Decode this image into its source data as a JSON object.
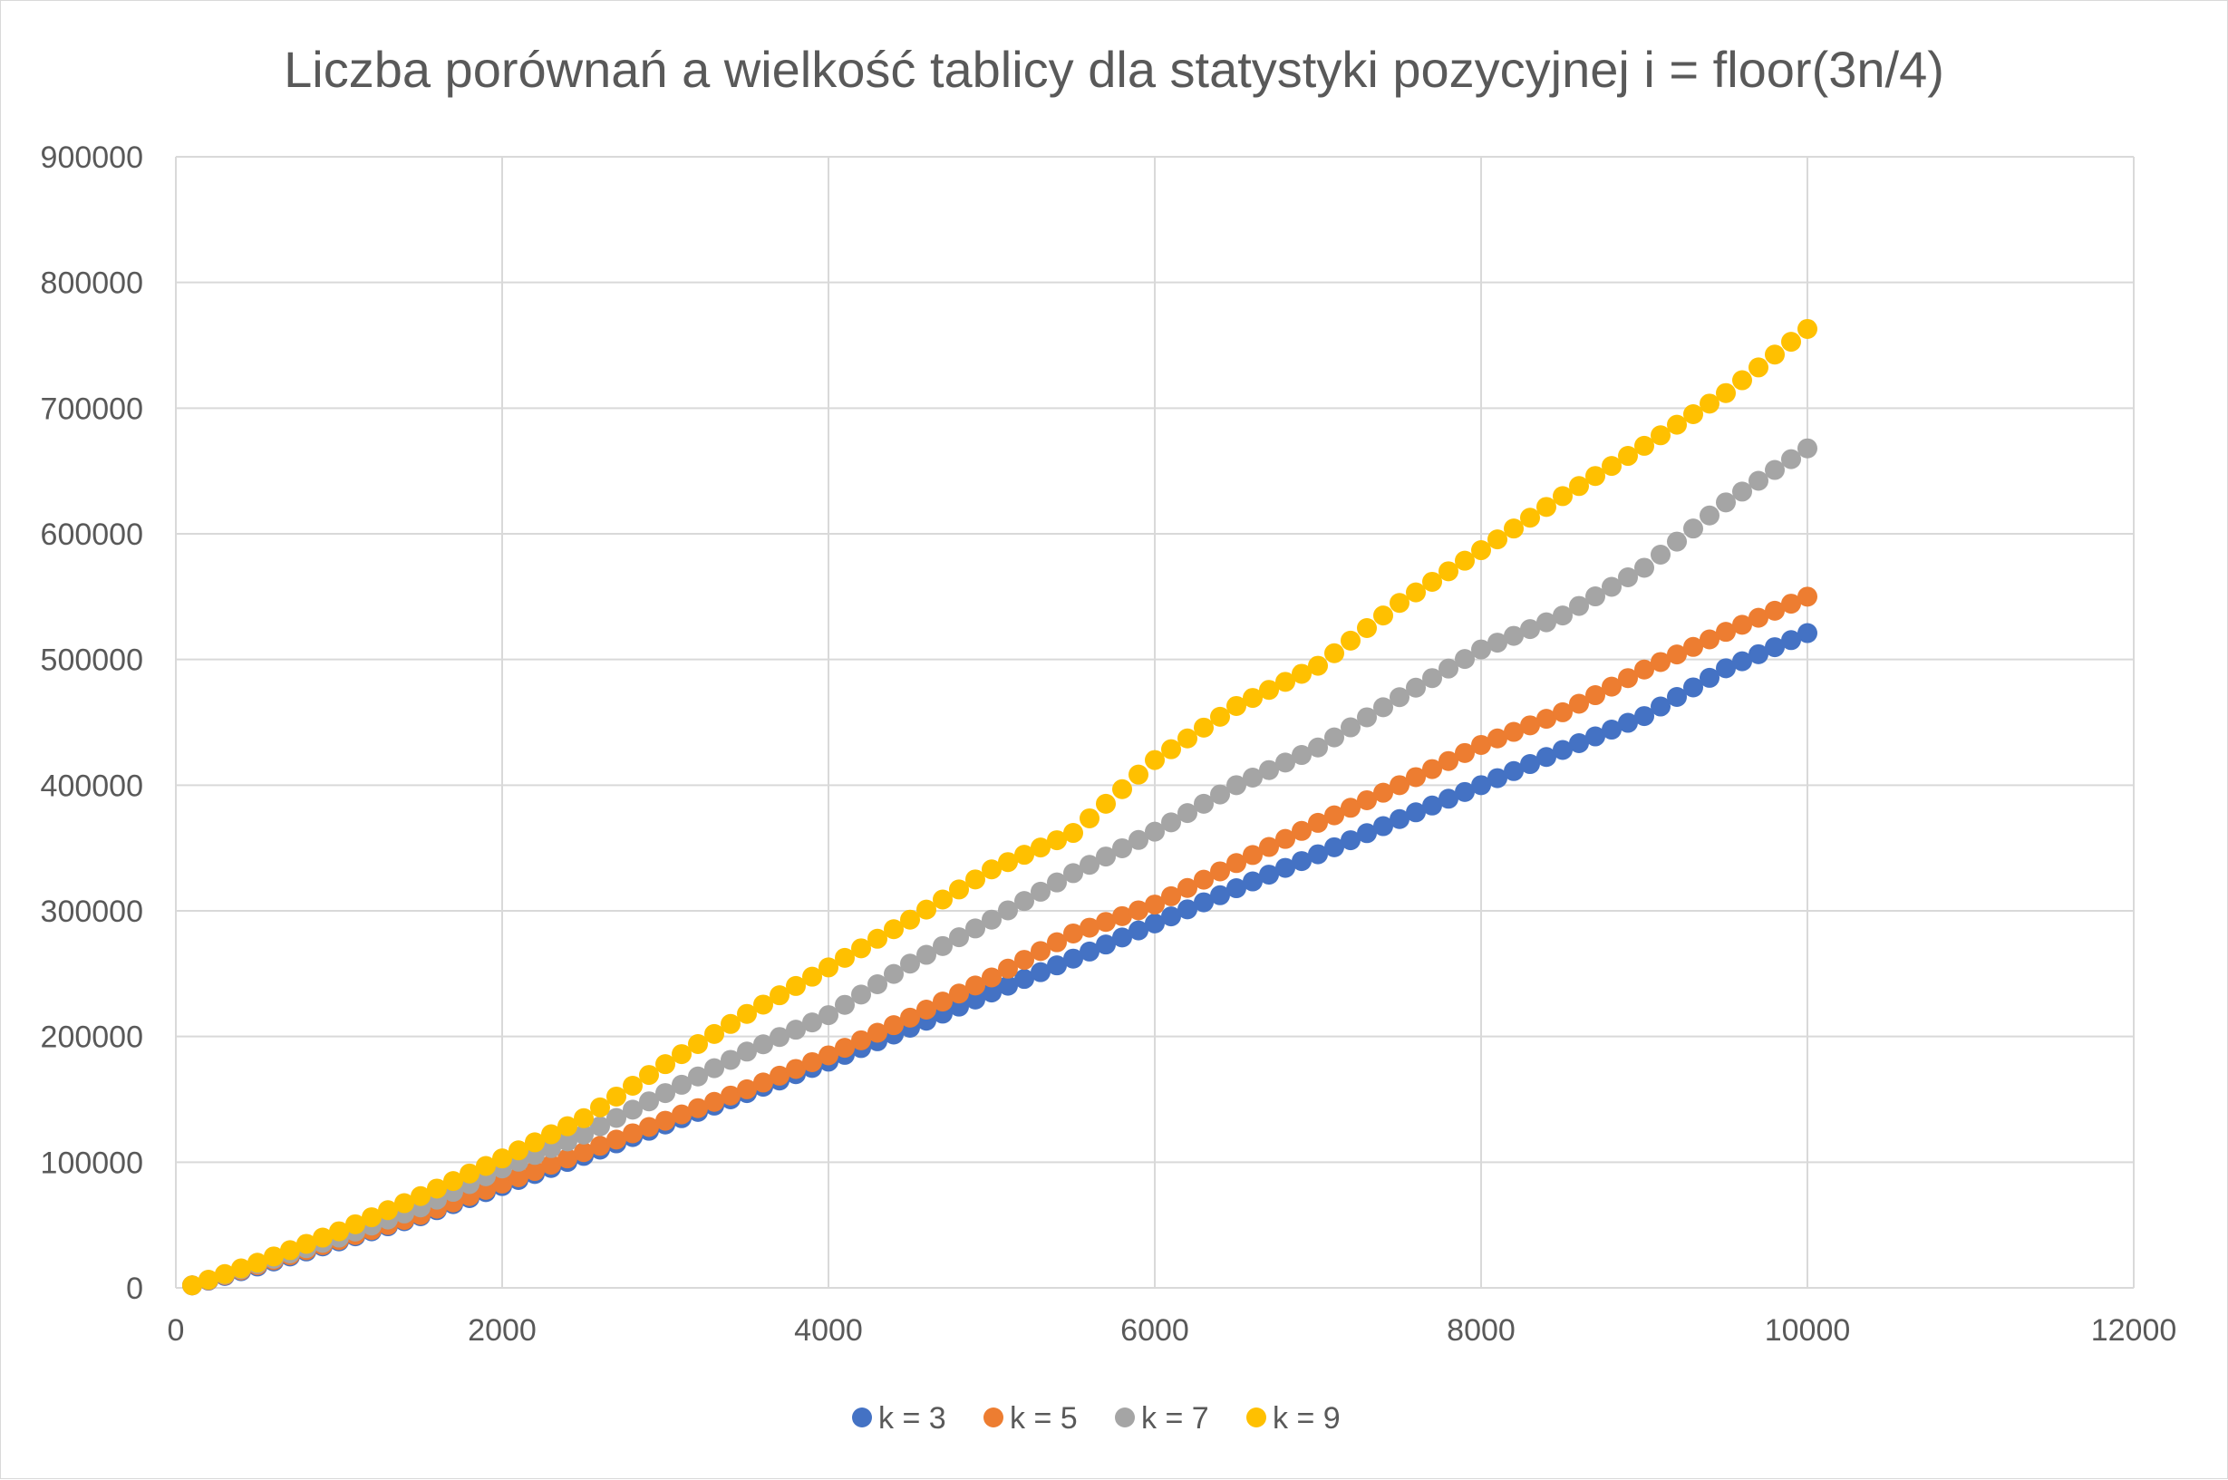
{
  "chart_data": {
    "type": "scatter",
    "title": "Liczba porównań a wielkość tablicy dla statystyki pozycyjnej i = floor(3n/4)",
    "xlabel": "",
    "ylabel": "",
    "xlim": [
      0,
      12000
    ],
    "ylim": [
      0,
      900000
    ],
    "x_ticks": [
      0,
      2000,
      4000,
      6000,
      8000,
      10000,
      12000
    ],
    "y_ticks": [
      0,
      100000,
      200000,
      300000,
      400000,
      500000,
      600000,
      700000,
      800000,
      900000
    ],
    "x_tick_labels": [
      "0",
      "2000",
      "4000",
      "6000",
      "8000",
      "10000",
      "12000"
    ],
    "y_tick_labels": [
      "0",
      "100000",
      "200000",
      "300000",
      "400000",
      "500000",
      "600000",
      "700000",
      "800000",
      "900000"
    ],
    "grid": true,
    "legend_position": "bottom",
    "series": [
      {
        "name": "k = 3",
        "color": "#4472C4",
        "points": [
          [
            100,
            2000
          ],
          [
            500,
            17000
          ],
          [
            1000,
            37000
          ],
          [
            1500,
            57000
          ],
          [
            2000,
            81000
          ],
          [
            2500,
            105000
          ],
          [
            3000,
            130000
          ],
          [
            3500,
            155000
          ],
          [
            4000,
            180000
          ],
          [
            4500,
            207000
          ],
          [
            5000,
            235000
          ],
          [
            5500,
            262000
          ],
          [
            6000,
            290000
          ],
          [
            6500,
            318000
          ],
          [
            7000,
            345000
          ],
          [
            7500,
            373000
          ],
          [
            8000,
            400000
          ],
          [
            8500,
            428000
          ],
          [
            9000,
            455000
          ],
          [
            9500,
            493000
          ],
          [
            10000,
            521000
          ]
        ]
      },
      {
        "name": "k = 5",
        "color": "#ED7D31",
        "points": [
          [
            100,
            2000
          ],
          [
            500,
            18000
          ],
          [
            1000,
            38000
          ],
          [
            1500,
            58000
          ],
          [
            2000,
            83000
          ],
          [
            2500,
            108000
          ],
          [
            3000,
            133000
          ],
          [
            3500,
            158000
          ],
          [
            4000,
            185000
          ],
          [
            4500,
            215000
          ],
          [
            5000,
            247000
          ],
          [
            5500,
            282000
          ],
          [
            6000,
            305000
          ],
          [
            6500,
            338000
          ],
          [
            7000,
            370000
          ],
          [
            7500,
            400000
          ],
          [
            8000,
            432000
          ],
          [
            8500,
            458000
          ],
          [
            9000,
            492000
          ],
          [
            9500,
            522000
          ],
          [
            10000,
            550000
          ]
        ]
      },
      {
        "name": "k = 7",
        "color": "#A5A5A5",
        "points": [
          [
            100,
            2000
          ],
          [
            500,
            19000
          ],
          [
            1000,
            40000
          ],
          [
            1500,
            64000
          ],
          [
            2000,
            95000
          ],
          [
            2500,
            122000
          ],
          [
            3000,
            155000
          ],
          [
            3500,
            188000
          ],
          [
            4000,
            217000
          ],
          [
            4500,
            258000
          ],
          [
            5000,
            293000
          ],
          [
            5500,
            330000
          ],
          [
            6000,
            363000
          ],
          [
            6500,
            400000
          ],
          [
            7000,
            430000
          ],
          [
            7500,
            470000
          ],
          [
            8000,
            508000
          ],
          [
            8500,
            535000
          ],
          [
            9000,
            573000
          ],
          [
            9500,
            625000
          ],
          [
            10000,
            668000
          ]
        ]
      },
      {
        "name": "k = 9",
        "color": "#FFC000",
        "points": [
          [
            100,
            2000
          ],
          [
            500,
            20000
          ],
          [
            1000,
            45000
          ],
          [
            1500,
            73000
          ],
          [
            2000,
            103000
          ],
          [
            2500,
            135000
          ],
          [
            3000,
            178000
          ],
          [
            3500,
            218000
          ],
          [
            4000,
            255000
          ],
          [
            4500,
            293000
          ],
          [
            5000,
            333000
          ],
          [
            5500,
            362000
          ],
          [
            6000,
            420000
          ],
          [
            6500,
            463000
          ],
          [
            7000,
            495000
          ],
          [
            7500,
            545000
          ],
          [
            8000,
            587000
          ],
          [
            8500,
            630000
          ],
          [
            9000,
            670000
          ],
          [
            9500,
            712000
          ],
          [
            10000,
            763000
          ]
        ]
      }
    ]
  }
}
